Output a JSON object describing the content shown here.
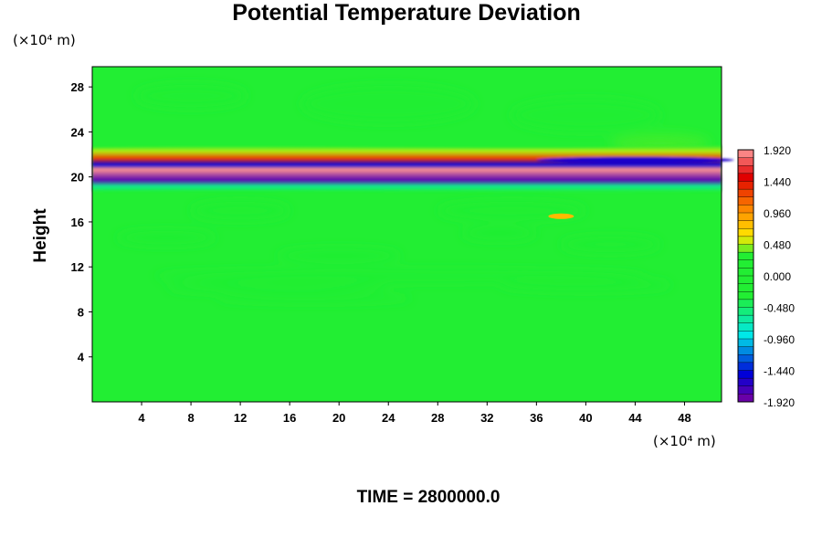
{
  "chart_data": {
    "type": "heatmap",
    "title": "Potential Temperature Deviation",
    "ylabel": "Height",
    "xunit": "(×10⁴ m)",
    "yunit": "(×10⁴ m)",
    "time_label": "TIME = 2800000.0",
    "x_ticks": [
      4,
      8,
      12,
      16,
      20,
      24,
      28,
      32,
      36,
      40,
      44,
      48
    ],
    "y_ticks": [
      4,
      8,
      12,
      16,
      20,
      24,
      28
    ],
    "xlim": [
      0,
      51
    ],
    "ylim": [
      0,
      29.8
    ],
    "colorbar": {
      "min": -1.92,
      "max": 1.92,
      "step": 0.12,
      "tick_labels": [
        "1.920",
        "1.440",
        "0.960",
        "0.480",
        "0.000",
        "-0.480",
        "-0.960",
        "-1.440",
        "-1.920"
      ],
      "colors": {
        "min": "#7a00a0",
        "blue": "#0000d8",
        "cyan": "#00e8e8",
        "zero": "#22ee33",
        "yellow": "#ffe800",
        "orange": "#ff8c00",
        "red": "#e00000",
        "max": "#ff9a9a"
      }
    },
    "field_features": {
      "background_value": 0.0,
      "inversion_layer": {
        "height_range": [
          19.2,
          22.2
        ],
        "positive_bands": [
          {
            "height": 20.6,
            "value": 1.9
          },
          {
            "height": 21.5,
            "value": 1.3
          },
          {
            "height": 22.1,
            "value": 0.5
          }
        ],
        "negative_bands": [
          {
            "height": 19.7,
            "value": -1.8
          },
          {
            "height": 21.0,
            "value": -1.5
          },
          {
            "height": 19.2,
            "value": -0.6
          }
        ]
      },
      "disturbed_layer_height_range": [
        9,
        17.5
      ],
      "small_positive_patch": {
        "x": 38,
        "y": 16.5,
        "value": 0.8
      }
    }
  }
}
